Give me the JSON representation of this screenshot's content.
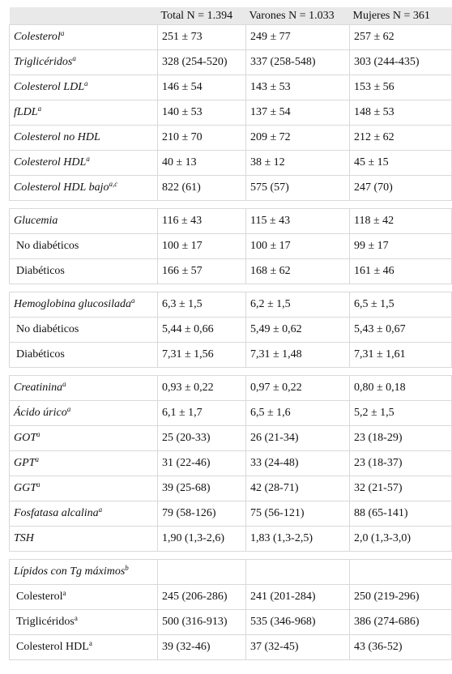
{
  "header": [
    "",
    "Total N = 1.394",
    "Varones N = 1.033",
    "Mujeres N = 361"
  ],
  "rows": [
    {
      "type": "row",
      "label": "Colesterol",
      "sup": "a",
      "italic": true,
      "values": [
        "251 ± 73",
        "249 ± 77",
        "257 ± 62"
      ]
    },
    {
      "type": "row",
      "label": "Triglicéridos",
      "sup": "a",
      "italic": true,
      "values": [
        "328 (254-520)",
        "337 (258-548)",
        "303 (244-435)"
      ]
    },
    {
      "type": "row",
      "label": "Colesterol LDL",
      "sup": "a",
      "italic": true,
      "values": [
        "146 ± 54",
        "143 ± 53",
        "153 ± 56"
      ]
    },
    {
      "type": "row",
      "label": "fLDL",
      "sup": "a",
      "italic": true,
      "values": [
        "140 ± 53",
        "137 ± 54",
        "148 ± 53"
      ]
    },
    {
      "type": "row",
      "label": "Colesterol no HDL",
      "sup": "",
      "italic": true,
      "values": [
        "210 ± 70",
        "209 ± 72",
        "212 ± 62"
      ]
    },
    {
      "type": "row",
      "label": "Colesterol HDL",
      "sup": "a",
      "italic": true,
      "values": [
        "40 ± 13",
        "38 ± 12",
        "45 ± 15"
      ]
    },
    {
      "type": "row",
      "label": "Colesterol HDL bajo",
      "sup": "a,c",
      "italic": true,
      "values": [
        "822 (61)",
        "575 (57)",
        "247 (70)"
      ]
    },
    {
      "type": "spacer"
    },
    {
      "type": "row",
      "label": "Glucemia",
      "sup": "",
      "italic": true,
      "values": [
        "116 ± 43",
        "115 ± 43",
        "118 ± 42"
      ]
    },
    {
      "type": "row",
      "label": "No diabéticos",
      "sup": "",
      "italic": false,
      "values": [
        "100 ± 17",
        "100 ± 17",
        "99 ± 17"
      ]
    },
    {
      "type": "row",
      "label": "Diabéticos",
      "sup": "",
      "italic": false,
      "values": [
        "166 ± 57",
        "168 ± 62",
        "161 ± 46"
      ]
    },
    {
      "type": "spacer"
    },
    {
      "type": "row",
      "label": "Hemoglobina glucosilada",
      "sup": "a",
      "italic": true,
      "values": [
        "6,3 ± 1,5",
        "6,2 ± 1,5",
        "6,5 ± 1,5"
      ]
    },
    {
      "type": "row",
      "label": "No diabéticos",
      "sup": "",
      "italic": false,
      "values": [
        "5,44 ± 0,66",
        "5,49 ± 0,62",
        "5,43 ± 0,67"
      ]
    },
    {
      "type": "row",
      "label": "Diabéticos",
      "sup": "",
      "italic": false,
      "values": [
        "7,31 ± 1,56",
        "7,31 ± 1,48",
        "7,31 ± 1,61"
      ]
    },
    {
      "type": "spacer"
    },
    {
      "type": "row",
      "label": "Creatinina",
      "sup": "a",
      "italic": true,
      "values": [
        "0,93 ± 0,22",
        "0,97 ± 0,22",
        "0,80 ± 0,18"
      ]
    },
    {
      "type": "row",
      "label": "Ácido úrico",
      "sup": "a",
      "italic": true,
      "values": [
        "6,1 ± 1,7",
        "6,5 ± 1,6",
        "5,2 ± 1,5"
      ]
    },
    {
      "type": "row",
      "label": "GOT",
      "sup": "a",
      "italic": true,
      "values": [
        "25 (20-33)",
        "26 (21-34)",
        "23 (18-29)"
      ]
    },
    {
      "type": "row",
      "label": "GPT",
      "sup": "a",
      "italic": true,
      "values": [
        "31 (22-46)",
        "33 (24-48)",
        "23 (18-37)"
      ]
    },
    {
      "type": "row",
      "label": "GGT",
      "sup": "a",
      "italic": true,
      "values": [
        "39 (25-68)",
        "42 (28-71)",
        "32 (21-57)"
      ]
    },
    {
      "type": "row",
      "label": "Fosfatasa alcalina",
      "sup": "a",
      "italic": true,
      "values": [
        "79 (58-126)",
        "75 (56-121)",
        "88 (65-141)"
      ]
    },
    {
      "type": "row",
      "label": "TSH",
      "sup": "",
      "italic": true,
      "values": [
        "1,90 (1,3-2,6)",
        "1,83 (1,3-2,5)",
        "2,0 (1,3-3,0)"
      ]
    },
    {
      "type": "spacer"
    },
    {
      "type": "row",
      "label": "Lípidos con Tg máximos",
      "sup": "b",
      "italic": true,
      "values": [
        "",
        "",
        ""
      ]
    },
    {
      "type": "row",
      "label": "Colesterol",
      "sup": "a",
      "italic": false,
      "values": [
        "245 (206-286)",
        "241 (201-284)",
        "250 (219-296)"
      ]
    },
    {
      "type": "row",
      "label": "Triglicéridos",
      "sup": "a",
      "italic": false,
      "values": [
        "500 (316-913)",
        "535 (346-968)",
        "386 (274-686)"
      ]
    },
    {
      "type": "row",
      "label": "Colesterol HDL",
      "sup": "a",
      "italic": false,
      "values": [
        "39 (32-46)",
        "37 (32-45)",
        "43 (36-52)"
      ]
    }
  ]
}
